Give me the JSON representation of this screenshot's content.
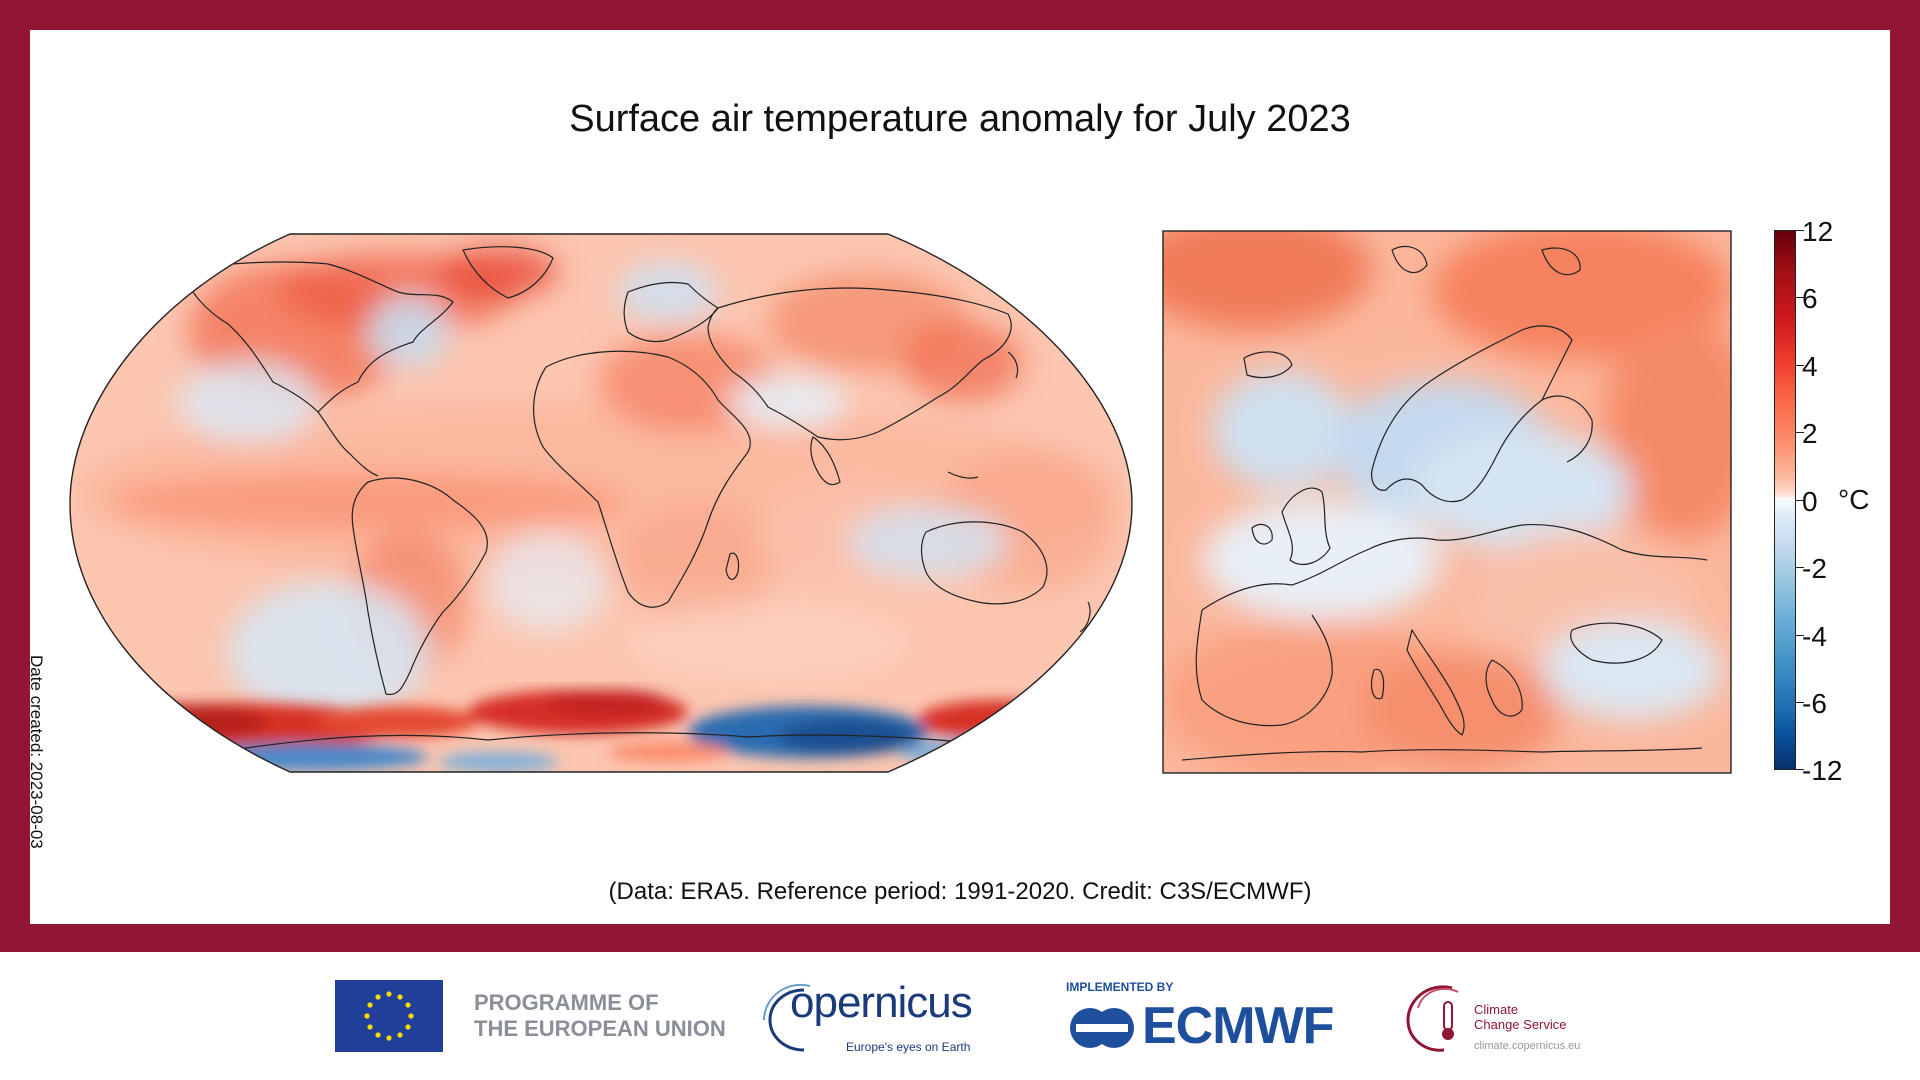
{
  "title": "Surface air temperature anomaly for July 2023",
  "date_created": "Date created: 2023-08-03",
  "credit": "(Data: ERA5. Reference period: 1991-2020. Credit: C3S/ECMWF)",
  "colorbar": {
    "unit": "°C",
    "ticks": [
      "12",
      "6",
      "4",
      "2",
      "0",
      "-2",
      "-4",
      "-6",
      "-12"
    ],
    "colors": {
      "max": "#67000d",
      "warm": "#ef3b2c",
      "neutral": "#f7fbff",
      "cool": "#4292c6",
      "min": "#08306b"
    }
  },
  "maps": {
    "global": {
      "name": "global-map",
      "projection": "Robinson"
    },
    "europe": {
      "name": "europe-map"
    }
  },
  "footer": {
    "programme_line1": "PROGRAMME OF",
    "programme_line2": "THE EUROPEAN UNION",
    "copernicus_name": "opernicus",
    "copernicus_tagline": "Europe's eyes on Earth",
    "implemented_by": "IMPLEMENTED BY",
    "ecmwf": "ECMWF",
    "c3s_line1": "Climate",
    "c3s_line2": "Change Service",
    "c3s_url": "climate.copernicus.eu"
  },
  "colors": {
    "frame": "#8f1733",
    "eu_blue": "#1f3f99",
    "eu_star": "#ffdd00",
    "copernicus_blue": "#1a3a7c",
    "ecmwf_blue": "#1e4f9c"
  }
}
